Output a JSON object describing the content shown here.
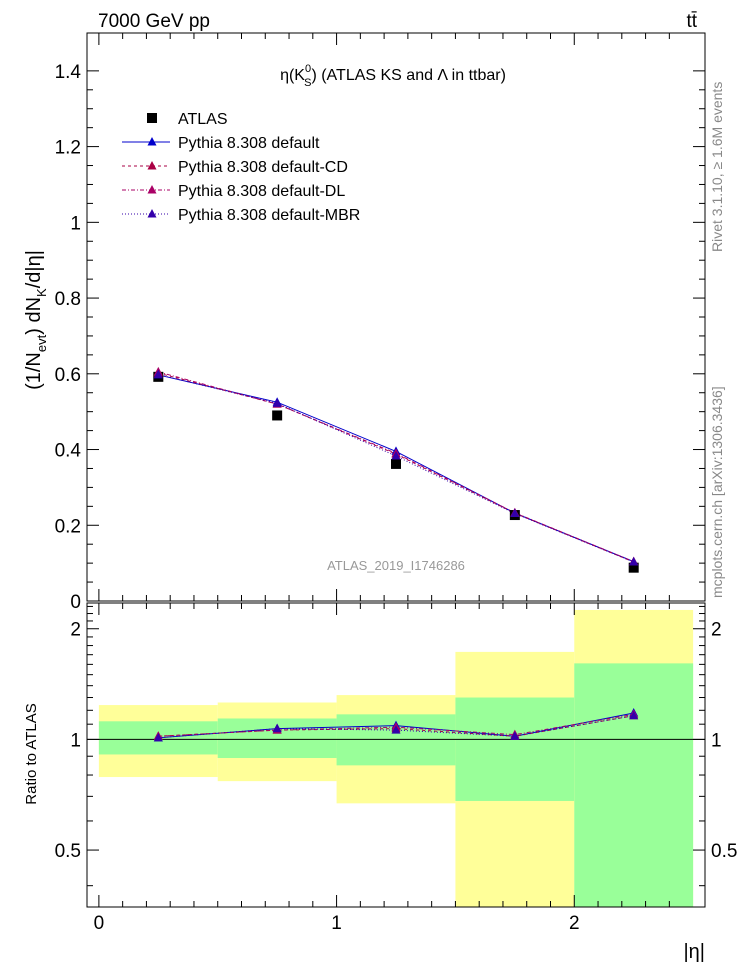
{
  "header": {
    "left": "7000 GeV pp",
    "right": "tt̄"
  },
  "side_text": {
    "rivet": "Rivet 3.1.10, ≥ 1.6M events",
    "site": "mcplots.cern.ch [arXiv:1306.3436]"
  },
  "chart_data": {
    "type": "scatter",
    "title_parts": {
      "pre": "η(K",
      "sup": "0",
      "sub": "S",
      "post": ") (ATLAS KS and Λ in ttbar)"
    },
    "analysis_id": "ATLAS_2019_I1746286",
    "xlabel": "|η|",
    "ylabel_parts": {
      "a": "(1/N",
      "a_sub": "evt",
      "b": ") dN",
      "b_sub": "K",
      "c": "/d|η|"
    },
    "ratio_ylabel": "Ratio to ATLAS",
    "xlim": [
      -0.05,
      2.55
    ],
    "ylim": [
      0,
      1.5
    ],
    "ratio_ylim": [
      0.35,
      2.35
    ],
    "x_ticks": [
      "0",
      "1",
      "2"
    ],
    "y_ticks": [
      "0",
      "0.2",
      "0.4",
      "0.6",
      "0.8",
      "1",
      "1.2",
      "1.4"
    ],
    "ratio_ticks": [
      "0.5",
      "1",
      "2"
    ],
    "bins": [
      [
        0,
        0.5
      ],
      [
        0.5,
        1.0
      ],
      [
        1.0,
        1.5
      ],
      [
        1.5,
        2.0
      ],
      [
        2.0,
        2.5
      ]
    ],
    "x": [
      0.25,
      0.75,
      1.25,
      1.75,
      2.25
    ],
    "data": {
      "name": "ATLAS",
      "values": [
        0.592,
        0.49,
        0.362,
        0.227,
        0.088
      ]
    },
    "series": [
      {
        "name": "Pythia 8.308 default",
        "values": [
          0.597,
          0.525,
          0.395,
          0.232,
          0.104
        ],
        "ratio": [
          1.01,
          1.07,
          1.09,
          1.02,
          1.18
        ]
      },
      {
        "name": "Pythia 8.308 default-CD",
        "values": [
          0.602,
          0.52,
          0.388,
          0.232,
          0.103
        ],
        "ratio": [
          1.02,
          1.06,
          1.07,
          1.02,
          1.16
        ]
      },
      {
        "name": "Pythia 8.308 default-DL",
        "values": [
          0.605,
          0.52,
          0.39,
          0.233,
          0.104
        ],
        "ratio": [
          1.02,
          1.06,
          1.08,
          1.03,
          1.17
        ]
      },
      {
        "name": "Pythia 8.308 default-MBR",
        "values": [
          0.598,
          0.522,
          0.383,
          0.231,
          0.103
        ],
        "ratio": [
          1.01,
          1.07,
          1.06,
          1.02,
          1.16
        ]
      }
    ],
    "ratio_band_green": [
      [
        0.91,
        1.12
      ],
      [
        0.89,
        1.14
      ],
      [
        0.85,
        1.17
      ],
      [
        0.68,
        1.3
      ],
      [
        0.35,
        1.61
      ]
    ],
    "ratio_band_yellow": [
      [
        0.79,
        1.24
      ],
      [
        0.77,
        1.26
      ],
      [
        0.67,
        1.32
      ],
      [
        0.35,
        1.73
      ],
      [
        0.35,
        2.25
      ]
    ],
    "colors": {
      "data": "#000000",
      "default": "#0000cc",
      "cd": "#aa0044",
      "dl": "#aa0066",
      "mbr": "#3300aa",
      "band_green": "#99ff99",
      "band_yellow": "#ffff99"
    }
  }
}
